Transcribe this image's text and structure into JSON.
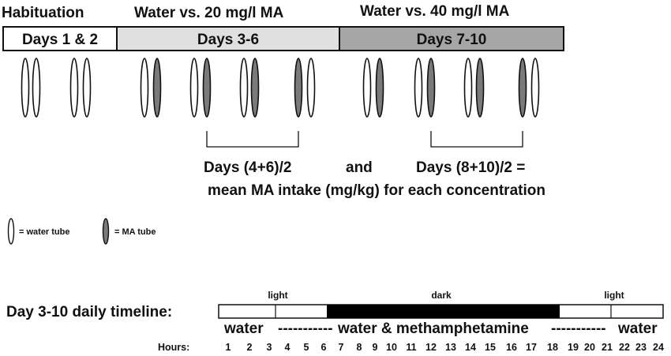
{
  "headers": {
    "habituation": "Habituation",
    "phase1": "Water vs. 20 mg/l MA",
    "phase2": "Water vs. 40 mg/l MA"
  },
  "bar": {
    "seg1": "Days 1 & 2",
    "seg2": "Days 3-6",
    "seg3": "Days 7-10"
  },
  "tubes": [
    "water",
    "water",
    "water",
    "water",
    "water",
    "ma",
    "water",
    "ma",
    "water",
    "ma",
    "ma",
    "water",
    "water",
    "ma",
    "water",
    "ma",
    "water",
    "ma",
    "ma",
    "water"
  ],
  "formula": {
    "days_a": "Days (4+6)/2",
    "and": "and",
    "days_b": "Days (8+10)/2 =",
    "result": "mean MA intake (mg/kg) for each concentration"
  },
  "legend": {
    "water": "= water tube",
    "ma": "= MA tube"
  },
  "timeline": {
    "label": "Day 3-10 daily timeline:",
    "light_left": "light",
    "dark": "dark",
    "light_right": "light",
    "water_left": "water",
    "dashes_left": "-----------",
    "water_ma": "water & methamphetamine",
    "dashes_right": "-----------",
    "water_right": "water",
    "hours_label": "Hours:",
    "hours": [
      "1",
      "2",
      "3",
      "4",
      "5",
      "6",
      "7",
      "8",
      "9",
      "10",
      "11",
      "12",
      "13",
      "14",
      "15",
      "16",
      "17",
      "18",
      "19",
      "20",
      "21",
      "22",
      "23",
      "24"
    ]
  },
  "colors": {
    "seg2_fill": "#e0e0e0",
    "seg3_fill": "#a6a6a6",
    "ma_tube": "#7a7a7a",
    "dark_fill": "#000000"
  }
}
